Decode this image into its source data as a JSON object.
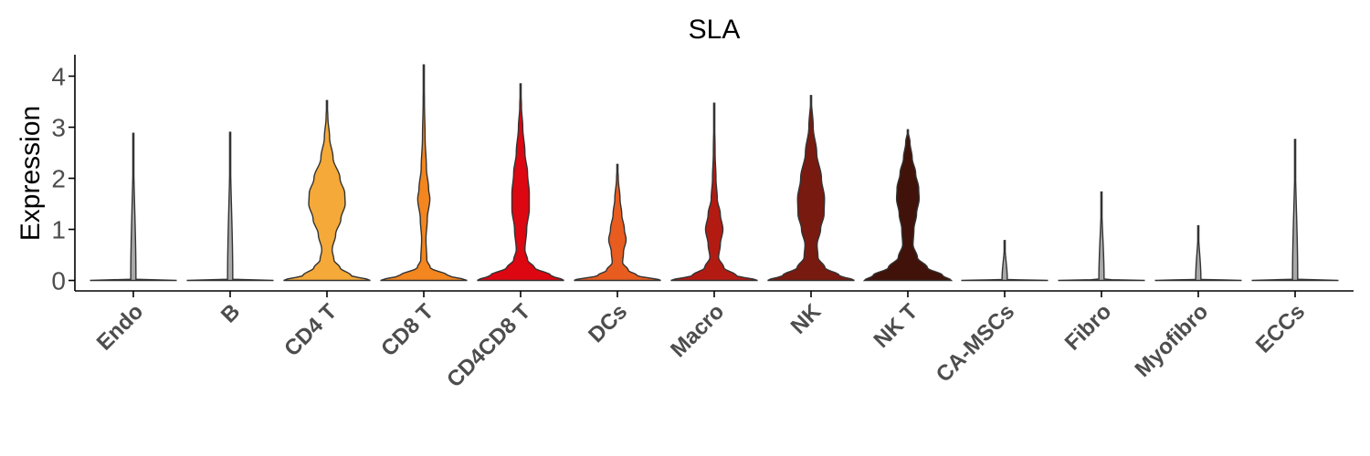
{
  "chart_data": {
    "type": "violin",
    "title": "SLA",
    "xlabel": "",
    "ylabel": "Expression",
    "ylim": [
      -0.2,
      4.4
    ],
    "yticks": [
      0,
      1,
      2,
      3,
      4
    ],
    "grid": false,
    "legend": "none",
    "categories": [
      "Endo",
      "B",
      "CD4 T",
      "CD8 T",
      "CD4CD8 T",
      "DCs",
      "Macro",
      "NK",
      "NK T",
      "CA-MSCs",
      "Fibro",
      "Myofibro",
      "ECCs"
    ],
    "series": [
      {
        "category": "Endo",
        "max": 2.88,
        "color": "#a9a9a9",
        "profile": [
          [
            0,
            1.0
          ],
          [
            0.02,
            0.06
          ],
          [
            2.88,
            0
          ]
        ]
      },
      {
        "category": "B",
        "max": 2.9,
        "color": "#a9a9a9",
        "profile": [
          [
            0,
            1.0
          ],
          [
            0.02,
            0.06
          ],
          [
            2.9,
            0
          ]
        ]
      },
      {
        "category": "CD4 T",
        "max": 3.52,
        "color": "#f4a938",
        "profile": [
          [
            0,
            1.0
          ],
          [
            0.1,
            0.55
          ],
          [
            0.25,
            0.3
          ],
          [
            0.4,
            0.16
          ],
          [
            0.6,
            0.12
          ],
          [
            0.9,
            0.2
          ],
          [
            1.2,
            0.32
          ],
          [
            1.5,
            0.42
          ],
          [
            1.7,
            0.41
          ],
          [
            2.0,
            0.3
          ],
          [
            2.4,
            0.14
          ],
          [
            2.8,
            0.06
          ],
          [
            3.2,
            0.02
          ],
          [
            3.52,
            0
          ]
        ]
      },
      {
        "category": "CD8 T",
        "max": 4.22,
        "color": "#f3861f",
        "profile": [
          [
            0,
            1.0
          ],
          [
            0.1,
            0.55
          ],
          [
            0.25,
            0.15
          ],
          [
            0.4,
            0.07
          ],
          [
            0.8,
            0.05
          ],
          [
            1.2,
            0.08
          ],
          [
            1.6,
            0.14
          ],
          [
            1.8,
            0.11
          ],
          [
            2.2,
            0.06
          ],
          [
            2.8,
            0.03
          ],
          [
            3.5,
            0.015
          ],
          [
            4.22,
            0
          ]
        ]
      },
      {
        "category": "CD4CD8 T",
        "max": 3.85,
        "color": "#dc0711",
        "profile": [
          [
            0,
            1.0
          ],
          [
            0.1,
            0.7
          ],
          [
            0.25,
            0.32
          ],
          [
            0.4,
            0.16
          ],
          [
            0.6,
            0.1
          ],
          [
            1.0,
            0.14
          ],
          [
            1.4,
            0.2
          ],
          [
            1.7,
            0.2
          ],
          [
            2.1,
            0.16
          ],
          [
            2.5,
            0.1
          ],
          [
            3.0,
            0.05
          ],
          [
            3.4,
            0.02
          ],
          [
            3.85,
            0
          ]
        ]
      },
      {
        "category": "DCs",
        "max": 2.27,
        "color": "#e85c1f",
        "profile": [
          [
            0,
            1.0
          ],
          [
            0.1,
            0.45
          ],
          [
            0.2,
            0.25
          ],
          [
            0.35,
            0.12
          ],
          [
            0.55,
            0.14
          ],
          [
            0.8,
            0.2
          ],
          [
            1.0,
            0.16
          ],
          [
            1.3,
            0.1
          ],
          [
            1.6,
            0.06
          ],
          [
            2.0,
            0.02
          ],
          [
            2.27,
            0
          ]
        ]
      },
      {
        "category": "Macro",
        "max": 3.47,
        "color": "#b31b12",
        "profile": [
          [
            0,
            1.0
          ],
          [
            0.1,
            0.5
          ],
          [
            0.25,
            0.22
          ],
          [
            0.45,
            0.1
          ],
          [
            0.7,
            0.14
          ],
          [
            1.0,
            0.2
          ],
          [
            1.3,
            0.14
          ],
          [
            1.6,
            0.07
          ],
          [
            2.0,
            0.04
          ],
          [
            2.5,
            0.02
          ],
          [
            3.47,
            0
          ]
        ]
      },
      {
        "category": "NK",
        "max": 3.62,
        "color": "#791a10",
        "profile": [
          [
            0,
            1.0
          ],
          [
            0.1,
            0.65
          ],
          [
            0.25,
            0.32
          ],
          [
            0.45,
            0.16
          ],
          [
            0.7,
            0.14
          ],
          [
            1.0,
            0.22
          ],
          [
            1.3,
            0.3
          ],
          [
            1.6,
            0.31
          ],
          [
            2.0,
            0.24
          ],
          [
            2.5,
            0.13
          ],
          [
            3.0,
            0.05
          ],
          [
            3.62,
            0
          ]
        ]
      },
      {
        "category": "NK T",
        "max": 2.95,
        "color": "#401209",
        "profile": [
          [
            0,
            1.0
          ],
          [
            0.1,
            0.8
          ],
          [
            0.25,
            0.45
          ],
          [
            0.45,
            0.22
          ],
          [
            0.7,
            0.12
          ],
          [
            1.0,
            0.14
          ],
          [
            1.3,
            0.2
          ],
          [
            1.6,
            0.26
          ],
          [
            1.8,
            0.25
          ],
          [
            2.1,
            0.18
          ],
          [
            2.4,
            0.1
          ],
          [
            2.7,
            0.05
          ],
          [
            2.95,
            0
          ]
        ]
      },
      {
        "category": "CA-MSCs",
        "max": 0.78,
        "color": "#a9a9a9",
        "profile": [
          [
            0,
            1.0
          ],
          [
            0.02,
            0.06
          ],
          [
            0.78,
            0
          ]
        ]
      },
      {
        "category": "Fibro",
        "max": 1.73,
        "color": "#a9a9a9",
        "profile": [
          [
            0,
            1.0
          ],
          [
            0.02,
            0.06
          ],
          [
            1.73,
            0
          ]
        ]
      },
      {
        "category": "Myofibro",
        "max": 1.07,
        "color": "#a9a9a9",
        "profile": [
          [
            0,
            1.0
          ],
          [
            0.02,
            0.06
          ],
          [
            1.07,
            0
          ]
        ]
      },
      {
        "category": "ECCs",
        "max": 2.76,
        "color": "#a9a9a9",
        "profile": [
          [
            0,
            1.0
          ],
          [
            0.02,
            0.06
          ],
          [
            2.76,
            0
          ]
        ]
      }
    ]
  }
}
